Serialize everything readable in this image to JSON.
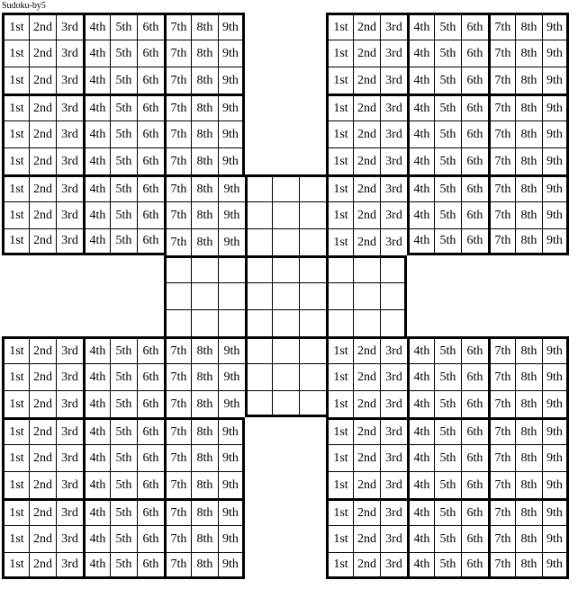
{
  "title": "Sudoku-by5",
  "ordinals": [
    "1st",
    "2nd",
    "3rd",
    "4th",
    "5th",
    "6th",
    "7th",
    "8th",
    "9th"
  ],
  "colors": {
    "line": "#000000",
    "text": "#000000",
    "background": "#ffffff"
  },
  "board": {
    "type": "samurai-sudoku",
    "rows": 21,
    "cols": 21,
    "box_size": 3,
    "sub_grids": [
      {
        "name": "top-left",
        "row": 1,
        "col": 1,
        "size": 9,
        "filled": true
      },
      {
        "name": "top-right",
        "row": 1,
        "col": 13,
        "size": 9,
        "filled": true
      },
      {
        "name": "center",
        "row": 7,
        "col": 7,
        "size": 9,
        "filled": false
      },
      {
        "name": "bottom-left",
        "row": 13,
        "col": 1,
        "size": 9,
        "filled": true
      },
      {
        "name": "bottom-right",
        "row": 13,
        "col": 13,
        "size": 9,
        "filled": true
      }
    ]
  }
}
